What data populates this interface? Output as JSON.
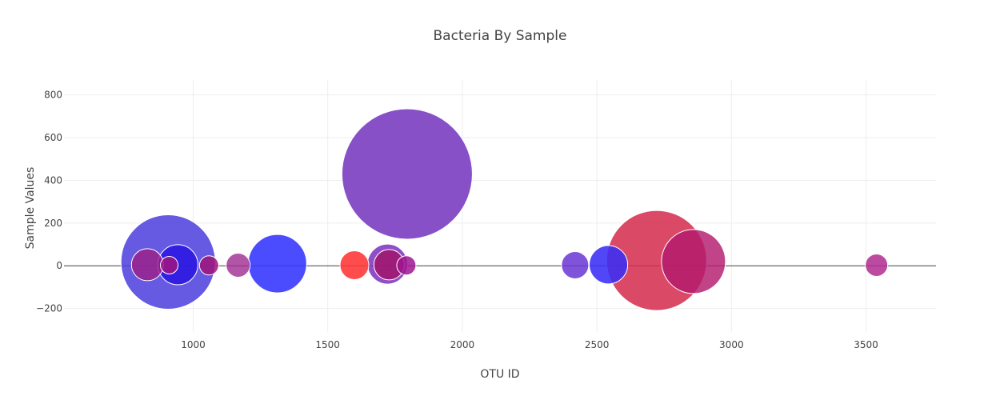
{
  "chart_data": {
    "type": "scatter",
    "title": "Bacteria By Sample",
    "xlabel": "OTU ID",
    "ylabel": "Sample Values",
    "xlim": [
      520,
      3760
    ],
    "ylim": [
      -310,
      870
    ],
    "x_ticks": [
      1000,
      1500,
      2000,
      2500,
      3000,
      3500
    ],
    "y_ticks": [
      -200,
      0,
      200,
      400,
      600,
      800
    ],
    "grid": true,
    "legend": "none",
    "series": [
      {
        "points": [
          {
            "x": 1795,
            "y": 430,
            "size": 163,
            "color": "#7a3dc0",
            "opacity": 0.9
          },
          {
            "x": 2722,
            "y": 25,
            "size": 125,
            "color": "#d42a4c",
            "opacity": 0.85
          },
          {
            "x": 907,
            "y": 18,
            "size": 118,
            "color": "#4b3ddd",
            "opacity": 0.85
          },
          {
            "x": 1313,
            "y": 10,
            "size": 73,
            "color": "#3333ff",
            "opacity": 0.88
          },
          {
            "x": 2859,
            "y": 20,
            "size": 80,
            "color": "#b31a6e",
            "opacity": 0.82
          },
          {
            "x": 943,
            "y": 5,
            "size": 50,
            "color": "#2a15e0",
            "opacity": 0.85
          },
          {
            "x": 2543,
            "y": 5,
            "size": 48,
            "color": "#3a2df5",
            "opacity": 0.88
          },
          {
            "x": 1722,
            "y": 8,
            "size": 50,
            "color": "#7d2fbf",
            "opacity": 0.85
          },
          {
            "x": 1728,
            "y": 5,
            "size": 38,
            "color": "#a0156a",
            "opacity": 0.85
          },
          {
            "x": 830,
            "y": 5,
            "size": 40,
            "color": "#9d1e86",
            "opacity": 0.8
          },
          {
            "x": 1599,
            "y": 3,
            "size": 36,
            "color": "#ff3333",
            "opacity": 0.88
          },
          {
            "x": 2419,
            "y": 3,
            "size": 34,
            "color": "#6a35d5",
            "opacity": 0.85
          },
          {
            "x": 1167,
            "y": 3,
            "size": 30,
            "color": "#a02a90",
            "opacity": 0.8
          },
          {
            "x": 3539,
            "y": 3,
            "size": 28,
            "color": "#b02a90",
            "opacity": 0.85
          },
          {
            "x": 1059,
            "y": 2,
            "size": 24,
            "color": "#a0157a",
            "opacity": 0.85
          },
          {
            "x": 911,
            "y": 3,
            "size": 22,
            "color": "#a01580",
            "opacity": 0.85
          },
          {
            "x": 1792,
            "y": 2,
            "size": 24,
            "color": "#a01590",
            "opacity": 0.85
          }
        ]
      }
    ]
  }
}
